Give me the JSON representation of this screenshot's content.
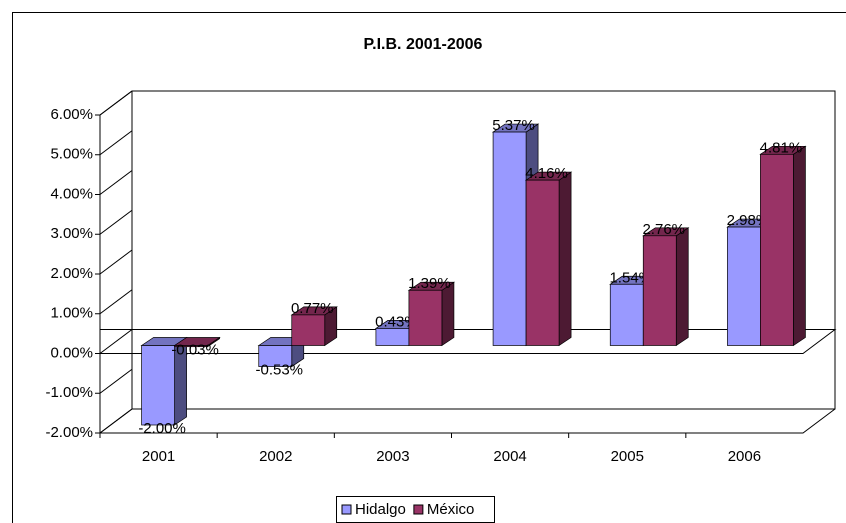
{
  "chart_data": {
    "type": "bar3d",
    "title": "P.I.B. 2001-2006",
    "categories": [
      "2001",
      "2002",
      "2003",
      "2004",
      "2005",
      "2006"
    ],
    "series": [
      {
        "name": "Hidalgo",
        "color": "#9999ff",
        "values": [
          -2.0,
          -0.53,
          0.43,
          5.37,
          1.54,
          2.98
        ],
        "value_labels": [
          "-2.00%",
          "-0.53%",
          "0.43%",
          "5.37%",
          "1.54%",
          "2.98%"
        ]
      },
      {
        "name": "México",
        "color": "#993366",
        "values": [
          -0.03,
          0.77,
          1.39,
          4.16,
          2.76,
          4.81
        ],
        "value_labels": [
          "-0.03%",
          "0.77%",
          "1.39%",
          "4.16%",
          "2.76%",
          "4.81%"
        ]
      }
    ],
    "ylim": [
      -2,
      6
    ],
    "yticks": [
      {
        "value": -2,
        "label": "-2.00%"
      },
      {
        "value": -1,
        "label": "-1.00%"
      },
      {
        "value": 0,
        "label": "0.00%"
      },
      {
        "value": 1,
        "label": "1.00%"
      },
      {
        "value": 2,
        "label": "2.00%"
      },
      {
        "value": 3,
        "label": "3.00%"
      },
      {
        "value": 4,
        "label": "4.00%"
      },
      {
        "value": 5,
        "label": "5.00%"
      },
      {
        "value": 6,
        "label": "6.00%"
      }
    ],
    "grid": false,
    "legend": "bottom"
  }
}
